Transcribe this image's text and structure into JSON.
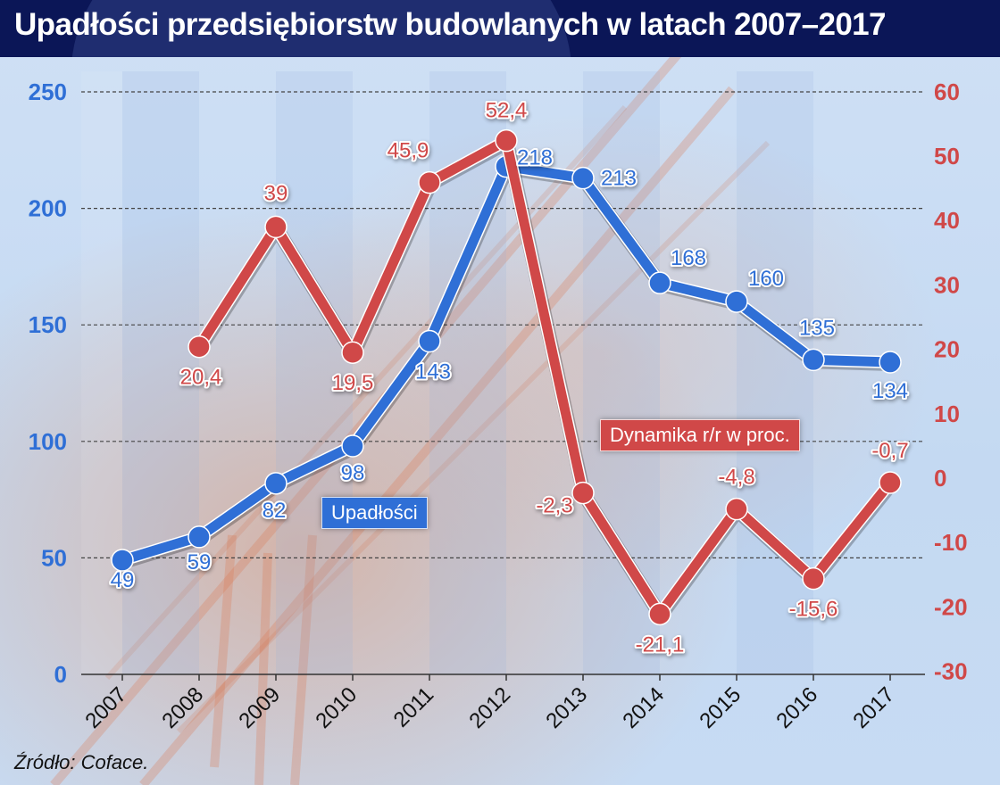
{
  "title": "Upadłości przedsiębiorstw budowlanych w latach 2007–2017",
  "source": "Źródło: Coface.",
  "colors": {
    "title_bg": "#0b1657",
    "blue": "#2f6fd6",
    "red": "#d04848"
  },
  "legend": {
    "bankruptcies": "Upadłości",
    "dynamics": "Dynamika r/r w proc."
  },
  "chart_data": {
    "type": "line",
    "title": "Upadłości przedsiębiorstw budowlanych w latach 2007–2017",
    "xlabel": "",
    "categories": [
      "2007",
      "2008",
      "2009",
      "2010",
      "2011",
      "2012",
      "2013",
      "2014",
      "2015",
      "2016",
      "2017"
    ],
    "series": [
      {
        "name": "Upadłości",
        "axis": "left",
        "color": "#2f6fd6",
        "values": [
          49,
          59,
          82,
          98,
          143,
          218,
          213,
          168,
          160,
          135,
          134
        ],
        "labels": [
          "49",
          "59",
          "82",
          "98",
          "143",
          "218",
          "213",
          "168",
          "160",
          "135",
          "134"
        ]
      },
      {
        "name": "Dynamika r/r w proc.",
        "axis": "right",
        "color": "#d04848",
        "values": [
          null,
          20.4,
          39,
          19.5,
          45.9,
          52.4,
          -2.3,
          -21.1,
          -4.8,
          -15.6,
          -0.7
        ],
        "labels": [
          "",
          "20,4",
          "39",
          "19,5",
          "45,9",
          "52,4",
          "-2,3",
          "-21,1",
          "-4,8",
          "-15,6",
          "-0,7"
        ]
      }
    ],
    "y_left": {
      "min": 0,
      "max": 250,
      "ticks": [
        0,
        50,
        100,
        150,
        200,
        250
      ]
    },
    "y_right": {
      "min": -30,
      "max": 60,
      "ticks": [
        60,
        50,
        40,
        30,
        20,
        10,
        0,
        -10,
        -20,
        -30
      ]
    },
    "grid": "dashed horizontal at left-axis ticks",
    "legend_position": "inline boxes"
  }
}
